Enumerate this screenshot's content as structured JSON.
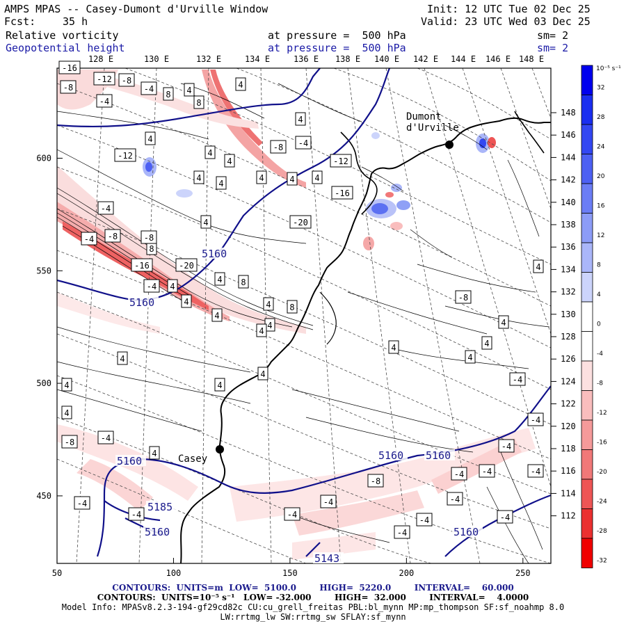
{
  "header": {
    "model": "AMPS MPAS -- Casey-Dumont d'Urville Window",
    "forecast_label": "Fcst:",
    "forecast_value": "35 h",
    "init": "Init: 12 UTC Tue 02 Dec 25",
    "valid": "Valid: 23 UTC Wed 03 Dec 25",
    "field1_name": "Relative vorticity",
    "field1_level": "at pressure =  500 hPa",
    "field1_sm": "sm= 2",
    "field2_name": "Geopotential height",
    "field2_level": "at pressure =  500 hPa",
    "field2_sm": "sm= 2"
  },
  "lon_labels": [
    "128 E",
    "130 E",
    "132 E",
    "134 E",
    "136 E",
    "138 E",
    "140 E",
    "142 E",
    "144 E",
    "146 E",
    "148 E"
  ],
  "lat_labels": [
    "148 E",
    "146 E",
    "144 E",
    "142 E",
    "140 E",
    "138 E",
    "136 E",
    "134 E",
    "132 E",
    "130 E",
    "128 E",
    "126 E",
    "124 E",
    "122 E",
    "120 E",
    "118 E",
    "116 E",
    "114 E",
    "112 E"
  ],
  "x_axis": {
    "ticks": [
      "50",
      "100",
      "150",
      "200",
      "250"
    ],
    "range": [
      50,
      262
    ]
  },
  "y_axis": {
    "ticks": [
      "450",
      "500",
      "550",
      "600"
    ],
    "range": [
      420,
      640
    ]
  },
  "colorbar": {
    "unit": "10⁻⁵ s⁻¹",
    "labels": [
      "32",
      "28",
      "24",
      "20",
      "16",
      "12",
      "8",
      "4",
      "0",
      "-4",
      "-8",
      "-12",
      "-16",
      "-20",
      "-24",
      "-28",
      "-32"
    ],
    "colors": [
      "#0000ee",
      "#1a2ef0",
      "#3347f2",
      "#4d60f3",
      "#6b7df5",
      "#8c9cf7",
      "#aab6f9",
      "#ccd4fb",
      "#ffffff",
      "#ffffff",
      "#fce0e0",
      "#f9bdbd",
      "#f59a9a",
      "#f17878",
      "#ee5555",
      "#eb3030",
      "#f00000"
    ]
  },
  "places": [
    {
      "name": "Casey",
      "x": 120,
      "y": 474
    },
    {
      "name": "Dumont d'Urville",
      "x": 218,
      "y": 604
    }
  ],
  "height_labels": [
    "5160",
    "5160",
    "5160",
    "5160",
    "5160",
    "5185",
    "5160",
    "5160",
    "5143"
  ],
  "vorticity_labels": [
    "-8",
    "-12",
    "-16",
    "-4",
    "-12",
    "-4",
    "-8",
    "-4",
    "4",
    "8",
    "4",
    "4",
    "4",
    "4",
    "8",
    "4",
    "4",
    "4",
    "4",
    "4",
    "8",
    "4",
    "-8",
    "-4",
    "4",
    "-12",
    "-16",
    "-20",
    "-8",
    "-8",
    "-4",
    "-20",
    "-16",
    "4",
    "8",
    "4",
    "-4",
    "4",
    "4",
    "4",
    "8",
    "4",
    "4",
    "4",
    "4",
    "4",
    "4",
    "4",
    "-8",
    "-4",
    "-4",
    "-4",
    "4",
    "-4",
    "-8",
    "-4",
    "-4",
    "-4",
    "-4",
    "-4",
    "-4",
    "-8",
    "4",
    "4",
    "4",
    "4",
    "4",
    "-4",
    "-4",
    "-4",
    "-4",
    "-4"
  ],
  "footer": {
    "contour1": "CONTOURS:  UNITS=m  LOW=  5100.0        HIGH=  5220.0        INTERVAL=    60.000",
    "contour2": "CONTOURS:  UNITS=10⁻⁵ s⁻¹   LOW= -32.000        HIGH=  32.000        INTERVAL=    4.0000",
    "model_info": "Model Info: MPASv8.2.3-194-gf29cd82c CU:cu_grell_freitas PBL:bl_mynn MP:mp_thompson SF:sf_noahmp 8.0",
    "model_info2": "LW:rrtmg_lw SW:rrtmg_sw SFLAY:sf_mynn"
  },
  "colors": {
    "height_contour": "#10108a",
    "coast": "#000000",
    "grid": "#555555"
  }
}
